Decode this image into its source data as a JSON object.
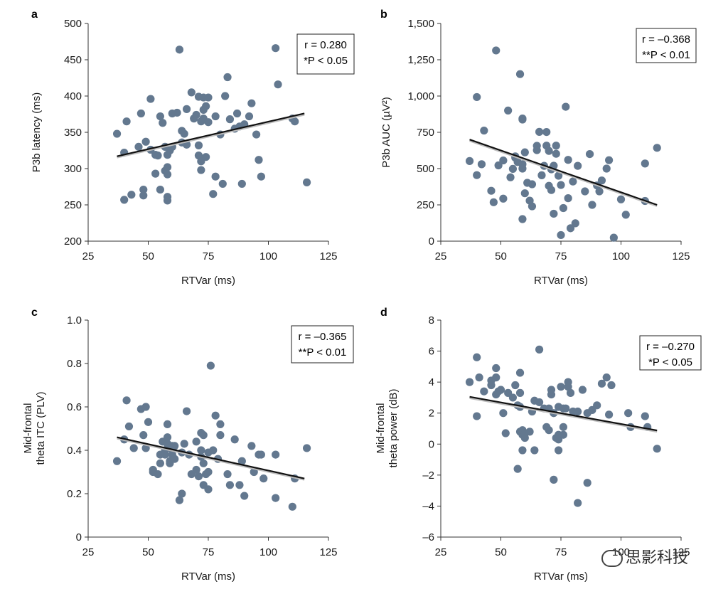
{
  "colors": {
    "point": "#63788f",
    "line": "#111111",
    "axis": "#333333"
  },
  "watermark": {
    "text": "思影科技",
    "icon": "wechat-icon"
  },
  "chart_data": [
    {
      "panel": "a",
      "type": "scatter",
      "xlabel": "RTVar (ms)",
      "ylabel": "P3b latency (ms)",
      "xlim": [
        25,
        125
      ],
      "ylim": [
        200,
        500
      ],
      "xticks": [
        "25",
        "50",
        "75",
        "100",
        "125"
      ],
      "yticks": [
        "200",
        "250",
        "300",
        "350",
        "400",
        "450",
        "500"
      ],
      "stat_lines": [
        "r = 0.280",
        "*P < 0.05"
      ],
      "fit": [
        [
          37,
          317
        ],
        [
          115,
          376
        ]
      ],
      "points": [
        [
          37,
          348
        ],
        [
          40,
          257
        ],
        [
          40,
          322
        ],
        [
          41,
          365
        ],
        [
          43,
          264
        ],
        [
          46,
          330
        ],
        [
          47,
          376
        ],
        [
          48,
          263
        ],
        [
          48,
          271
        ],
        [
          49,
          337
        ],
        [
          51,
          396
        ],
        [
          51,
          326
        ],
        [
          53,
          319
        ],
        [
          53,
          293
        ],
        [
          54,
          318
        ],
        [
          55,
          271
        ],
        [
          55,
          372
        ],
        [
          56,
          363
        ],
        [
          57,
          330
        ],
        [
          57,
          297
        ],
        [
          58,
          319
        ],
        [
          58,
          261
        ],
        [
          58,
          256
        ],
        [
          58,
          302
        ],
        [
          58,
          292
        ],
        [
          59,
          325
        ],
        [
          60,
          330
        ],
        [
          60,
          376
        ],
        [
          62,
          377
        ],
        [
          63,
          464
        ],
        [
          64,
          336
        ],
        [
          64,
          352
        ],
        [
          65,
          348
        ],
        [
          66,
          382
        ],
        [
          66,
          333
        ],
        [
          68,
          405
        ],
        [
          69,
          369
        ],
        [
          70,
          374
        ],
        [
          71,
          399
        ],
        [
          71,
          332
        ],
        [
          71,
          318
        ],
        [
          72,
          310
        ],
        [
          72,
          298
        ],
        [
          72,
          365
        ],
        [
          73,
          381
        ],
        [
          73,
          369
        ],
        [
          73,
          398
        ],
        [
          74,
          386
        ],
        [
          74,
          316
        ],
        [
          75,
          398
        ],
        [
          75,
          364
        ],
        [
          77,
          265
        ],
        [
          78,
          289
        ],
        [
          78,
          372
        ],
        [
          80,
          347
        ],
        [
          81,
          279
        ],
        [
          82,
          400
        ],
        [
          83,
          426
        ],
        [
          84,
          368
        ],
        [
          86,
          355
        ],
        [
          87,
          376
        ],
        [
          88,
          358
        ],
        [
          89,
          279
        ],
        [
          90,
          361
        ],
        [
          92,
          372
        ],
        [
          93,
          390
        ],
        [
          95,
          347
        ],
        [
          96,
          312
        ],
        [
          97,
          289
        ],
        [
          103,
          466
        ],
        [
          104,
          416
        ],
        [
          110,
          369
        ],
        [
          111,
          365
        ],
        [
          116,
          281
        ]
      ]
    },
    {
      "panel": "b",
      "type": "scatter",
      "xlabel": "RTVar (ms)",
      "ylabel": "P3b AUC (µV²)",
      "xlim": [
        25,
        125
      ],
      "ylim": [
        0,
        1500
      ],
      "xticks": [
        "25",
        "50",
        "75",
        "100",
        "125"
      ],
      "yticks": [
        "0",
        "250",
        "500",
        "750",
        "1,000",
        "1,250",
        "1,500"
      ],
      "stat_lines": [
        "r = –0.368",
        "**P < 0.01"
      ],
      "fit": [
        [
          37,
          700
        ],
        [
          115,
          250
        ]
      ],
      "points": [
        [
          37,
          552
        ],
        [
          40,
          993
        ],
        [
          40,
          455
        ],
        [
          42,
          530
        ],
        [
          43,
          762
        ],
        [
          46,
          347
        ],
        [
          47,
          268
        ],
        [
          48,
          1314
        ],
        [
          49,
          522
        ],
        [
          51,
          293
        ],
        [
          51,
          556
        ],
        [
          53,
          900
        ],
        [
          54,
          440
        ],
        [
          55,
          498
        ],
        [
          56,
          575
        ],
        [
          56,
          584
        ],
        [
          57,
          545
        ],
        [
          58,
          1151
        ],
        [
          59,
          838
        ],
        [
          59,
          845
        ],
        [
          59,
          152
        ],
        [
          59,
          530
        ],
        [
          59,
          500
        ],
        [
          60,
          612
        ],
        [
          60,
          330
        ],
        [
          61,
          402
        ],
        [
          62,
          279
        ],
        [
          63,
          240
        ],
        [
          63,
          392
        ],
        [
          65,
          657
        ],
        [
          65,
          627
        ],
        [
          66,
          753
        ],
        [
          67,
          454
        ],
        [
          68,
          519
        ],
        [
          69,
          752
        ],
        [
          69,
          658
        ],
        [
          70,
          622
        ],
        [
          70,
          381
        ],
        [
          71,
          495
        ],
        [
          71,
          352
        ],
        [
          72,
          189
        ],
        [
          72,
          520
        ],
        [
          73,
          658
        ],
        [
          73,
          602
        ],
        [
          74,
          451
        ],
        [
          75,
          387
        ],
        [
          75,
          42
        ],
        [
          76,
          228
        ],
        [
          77,
          926
        ],
        [
          78,
          296
        ],
        [
          78,
          560
        ],
        [
          79,
          89
        ],
        [
          80,
          411
        ],
        [
          81,
          123
        ],
        [
          82,
          519
        ],
        [
          85,
          343
        ],
        [
          87,
          600
        ],
        [
          88,
          250
        ],
        [
          90,
          384
        ],
        [
          91,
          343
        ],
        [
          92,
          418
        ],
        [
          94,
          500
        ],
        [
          95,
          558
        ],
        [
          97,
          24
        ],
        [
          100,
          288
        ],
        [
          102,
          182
        ],
        [
          110,
          535
        ],
        [
          110,
          277
        ],
        [
          115,
          643
        ]
      ]
    },
    {
      "panel": "c",
      "type": "scatter",
      "xlabel": "RTVar (ms)",
      "ylabel": "Mid-frontal theta ITC (PLV)",
      "ylabel_lines": [
        "Mid-frontal",
        "theta ITC (PLV)"
      ],
      "xlim": [
        25,
        125
      ],
      "ylim": [
        0,
        1.0
      ],
      "xticks": [
        "25",
        "50",
        "75",
        "100",
        "125"
      ],
      "yticks": [
        "0",
        "0.2",
        "0.4",
        "0.6",
        "0.8",
        "1.0"
      ],
      "stat_lines": [
        "r = –0.365",
        "**P < 0.01"
      ],
      "fit": [
        [
          37,
          0.46
        ],
        [
          115,
          0.27
        ]
      ],
      "points": [
        [
          37,
          0.35
        ],
        [
          40,
          0.45
        ],
        [
          41,
          0.63
        ],
        [
          42,
          0.51
        ],
        [
          44,
          0.41
        ],
        [
          47,
          0.59
        ],
        [
          48,
          0.47
        ],
        [
          49,
          0.6
        ],
        [
          49,
          0.41
        ],
        [
          50,
          0.53
        ],
        [
          52,
          0.31
        ],
        [
          52,
          0.3
        ],
        [
          54,
          0.29
        ],
        [
          55,
          0.34
        ],
        [
          55,
          0.38
        ],
        [
          56,
          0.44
        ],
        [
          57,
          0.4
        ],
        [
          57,
          0.38
        ],
        [
          58,
          0.52
        ],
        [
          58,
          0.46
        ],
        [
          58,
          0.43
        ],
        [
          59,
          0.41
        ],
        [
          59,
          0.35
        ],
        [
          59,
          0.34
        ],
        [
          60,
          0.42
        ],
        [
          60,
          0.38
        ],
        [
          61,
          0.36
        ],
        [
          61,
          0.42
        ],
        [
          63,
          0.17
        ],
        [
          64,
          0.2
        ],
        [
          64,
          0.39
        ],
        [
          65,
          0.43
        ],
        [
          66,
          0.58
        ],
        [
          67,
          0.38
        ],
        [
          68,
          0.29
        ],
        [
          70,
          0.31
        ],
        [
          70,
          0.44
        ],
        [
          71,
          0.28
        ],
        [
          72,
          0.37
        ],
        [
          72,
          0.48
        ],
        [
          72,
          0.4
        ],
        [
          73,
          0.47
        ],
        [
          73,
          0.34
        ],
        [
          73,
          0.24
        ],
        [
          74,
          0.29
        ],
        [
          75,
          0.3
        ],
        [
          75,
          0.39
        ],
        [
          75,
          0.22
        ],
        [
          76,
          0.79
        ],
        [
          77,
          0.4
        ],
        [
          78,
          0.56
        ],
        [
          79,
          0.36
        ],
        [
          80,
          0.52
        ],
        [
          80,
          0.47
        ],
        [
          83,
          0.29
        ],
        [
          84,
          0.24
        ],
        [
          86,
          0.45
        ],
        [
          88,
          0.24
        ],
        [
          89,
          0.35
        ],
        [
          90,
          0.19
        ],
        [
          93,
          0.42
        ],
        [
          94,
          0.3
        ],
        [
          96,
          0.38
        ],
        [
          97,
          0.38
        ],
        [
          98,
          0.27
        ],
        [
          103,
          0.38
        ],
        [
          103,
          0.18
        ],
        [
          110,
          0.14
        ],
        [
          111,
          0.27
        ],
        [
          116,
          0.41
        ]
      ]
    },
    {
      "panel": "d",
      "type": "scatter",
      "xlabel": "RTVar (ms)",
      "ylabel": "Mid-frontal theta power (dB)",
      "ylabel_lines": [
        "Mid-frontal",
        "theta power (dB)"
      ],
      "xlim": [
        25,
        125
      ],
      "ylim": [
        -6,
        8
      ],
      "xticks": [
        "25",
        "50",
        "75",
        "100",
        "125"
      ],
      "yticks": [
        "–6",
        "–4",
        "–2",
        "0",
        "2",
        "4",
        "6",
        "8"
      ],
      "stat_lines": [
        "r = –0.270",
        "*P < 0.05"
      ],
      "fit": [
        [
          37,
          3.05
        ],
        [
          115,
          0.88
        ]
      ],
      "points": [
        [
          37,
          4.0
        ],
        [
          40,
          1.8
        ],
        [
          40,
          5.6
        ],
        [
          41,
          4.3
        ],
        [
          43,
          3.4
        ],
        [
          46,
          4.1
        ],
        [
          46,
          3.8
        ],
        [
          48,
          4.3
        ],
        [
          48,
          4.9
        ],
        [
          48,
          3.2
        ],
        [
          49,
          3.4
        ],
        [
          50,
          3.5
        ],
        [
          51,
          2.0
        ],
        [
          52,
          0.7
        ],
        [
          53,
          3.3
        ],
        [
          55,
          3.0
        ],
        [
          56,
          3.8
        ],
        [
          57,
          2.5
        ],
        [
          57,
          -1.6
        ],
        [
          58,
          4.6
        ],
        [
          58,
          3.3
        ],
        [
          58,
          2.4
        ],
        [
          58,
          0.8
        ],
        [
          59,
          0.6
        ],
        [
          59,
          -0.4
        ],
        [
          59,
          0.9
        ],
        [
          60,
          0.4
        ],
        [
          60,
          0.7
        ],
        [
          62,
          0.8
        ],
        [
          63,
          2.1
        ],
        [
          64,
          2.8
        ],
        [
          64,
          -0.4
        ],
        [
          66,
          6.1
        ],
        [
          66,
          2.7
        ],
        [
          68,
          2.3
        ],
        [
          69,
          1.1
        ],
        [
          70,
          2.3
        ],
        [
          70,
          0.9
        ],
        [
          71,
          3.5
        ],
        [
          71,
          3.2
        ],
        [
          72,
          2.0
        ],
        [
          72,
          -2.3
        ],
        [
          73,
          0.4
        ],
        [
          74,
          2.4
        ],
        [
          74,
          0.3
        ],
        [
          74,
          0.6
        ],
        [
          74,
          -0.4
        ],
        [
          75,
          3.7
        ],
        [
          76,
          2.3
        ],
        [
          76,
          1.1
        ],
        [
          76,
          0.6
        ],
        [
          77,
          2.3
        ],
        [
          78,
          4.0
        ],
        [
          78,
          3.7
        ],
        [
          79,
          3.3
        ],
        [
          80,
          2.1
        ],
        [
          82,
          2.1
        ],
        [
          82,
          -3.8
        ],
        [
          84,
          3.5
        ],
        [
          86,
          2.0
        ],
        [
          86,
          -2.5
        ],
        [
          88,
          2.2
        ],
        [
          90,
          2.5
        ],
        [
          92,
          3.9
        ],
        [
          94,
          4.3
        ],
        [
          95,
          1.9
        ],
        [
          96,
          3.8
        ],
        [
          103,
          2.0
        ],
        [
          104,
          1.1
        ],
        [
          110,
          1.8
        ],
        [
          111,
          1.1
        ],
        [
          115,
          -0.3
        ]
      ]
    }
  ]
}
